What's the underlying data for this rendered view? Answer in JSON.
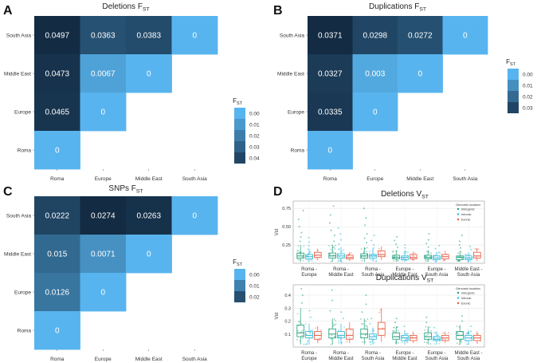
{
  "chart_data": [
    {
      "panel": "A",
      "type": "heatmap",
      "title": "Deletions F",
      "title_sub": "ST",
      "rows_top_to_bottom": [
        "South Asia",
        "Middle East",
        "Europe",
        "Roma"
      ],
      "columns": [
        "Roma",
        "Europe",
        "Middle East",
        "South Asia"
      ],
      "cells": [
        [
          {
            "v": 0.0497,
            "t": "0.0497"
          },
          {
            "v": 0.0363,
            "t": "0.0363"
          },
          {
            "v": 0.0383,
            "t": "0.0383"
          },
          {
            "v": 0,
            "t": "0"
          }
        ],
        [
          {
            "v": 0.0473,
            "t": "0.0473"
          },
          {
            "v": 0.0067,
            "t": "0.0067"
          },
          {
            "v": 0,
            "t": "0"
          }
        ],
        [
          {
            "v": 0.0465,
            "t": "0.0465"
          },
          {
            "v": 0,
            "t": "0"
          }
        ],
        [
          {
            "v": 0,
            "t": "0"
          }
        ]
      ],
      "legend_title": "F",
      "legend_sub": "ST",
      "legend_values": [
        0,
        0.01,
        0.02,
        0.03,
        0.04
      ],
      "legend_labels": [
        "0.00",
        "0.01",
        "0.02",
        "0.03",
        "0.04"
      ],
      "color_range": [
        0,
        0.05
      ]
    },
    {
      "panel": "B",
      "type": "heatmap",
      "title": "Duplications F",
      "title_sub": "ST",
      "rows_top_to_bottom": [
        "South Asia",
        "Middle East",
        "Europe",
        "Roma"
      ],
      "columns": [
        "Roma",
        "Europe",
        "Middle East",
        "South Asia"
      ],
      "cells": [
        [
          {
            "v": 0.0371,
            "t": "0.0371"
          },
          {
            "v": 0.0298,
            "t": "0.0298"
          },
          {
            "v": 0.0272,
            "t": "0.0272"
          },
          {
            "v": 0,
            "t": "0"
          }
        ],
        [
          {
            "v": 0.0327,
            "t": "0.0327"
          },
          {
            "v": 0.003,
            "t": "0.003"
          },
          {
            "v": 0,
            "t": "0"
          }
        ],
        [
          {
            "v": 0.0335,
            "t": "0.0335"
          },
          {
            "v": 0,
            "t": "0"
          }
        ],
        [
          {
            "v": 0,
            "t": "0"
          }
        ]
      ],
      "legend_title": "F",
      "legend_sub": "ST",
      "legend_values": [
        0,
        0.01,
        0.02,
        0.03
      ],
      "legend_labels": [
        "0.00",
        "0.01",
        "0.02",
        "0.03"
      ],
      "color_range": [
        0,
        0.0371
      ]
    },
    {
      "panel": "C",
      "type": "heatmap",
      "title": "SNPs F",
      "title_sub": "ST",
      "rows_top_to_bottom": [
        "South Asia",
        "Middle East",
        "Europe",
        "Roma"
      ],
      "columns": [
        "Roma",
        "Europe",
        "Middle East",
        "South Asia"
      ],
      "cells": [
        [
          {
            "v": 0.0222,
            "t": "0.0222"
          },
          {
            "v": 0.0274,
            "t": "0.0274"
          },
          {
            "v": 0.0263,
            "t": "0.0263"
          },
          {
            "v": 0,
            "t": "0"
          }
        ],
        [
          {
            "v": 0.015,
            "t": "0.015"
          },
          {
            "v": 0.0071,
            "t": "0.0071"
          },
          {
            "v": 0,
            "t": "0"
          }
        ],
        [
          {
            "v": 0.0126,
            "t": "0.0126"
          },
          {
            "v": 0,
            "t": "0"
          }
        ],
        [
          {
            "v": 0,
            "t": "0"
          }
        ]
      ],
      "legend_title": "F",
      "legend_sub": "ST",
      "legend_values": [
        0,
        0.01,
        0.02
      ],
      "legend_labels": [
        "0.00",
        "0.01",
        "0.02"
      ],
      "color_range": [
        0,
        0.0274
      ]
    },
    {
      "panel": "D",
      "type": "box",
      "subplots": [
        {
          "title": "Deletions V",
          "title_sub": "ST",
          "ylabel": "Vst",
          "ylim": [
            0,
            0.85
          ],
          "yticks": [
            0.25,
            0.5,
            0.75
          ],
          "ytick_labels": [
            "0.25",
            "0.50",
            "0.75"
          ],
          "categories": [
            "Roma -\nEurope",
            "Roma -\nMiddle East",
            "Roma -\nSouth Asia",
            "Europe -\nMiddle East",
            "Europe -\nSouth Asia",
            "Middle East -\nSouth Asia"
          ],
          "series": [
            {
              "name": "Intergenic",
              "color": "#1b9e77",
              "boxes": [
                {
                  "q1": 0.07,
                  "med": 0.1,
                  "q3": 0.14,
                  "lo": 0.02,
                  "hi": 0.25,
                  "outliers": [
                    0.3,
                    0.36,
                    0.42,
                    0.5,
                    0.6,
                    0.72
                  ]
                },
                {
                  "q1": 0.07,
                  "med": 0.1,
                  "q3": 0.14,
                  "lo": 0.02,
                  "hi": 0.25,
                  "outliers": [
                    0.3,
                    0.38,
                    0.45,
                    0.55,
                    0.66,
                    0.78
                  ]
                },
                {
                  "q1": 0.07,
                  "med": 0.1,
                  "q3": 0.13,
                  "lo": 0.02,
                  "hi": 0.22,
                  "outliers": [
                    0.28,
                    0.34,
                    0.4,
                    0.52,
                    0.62,
                    0.75
                  ]
                },
                {
                  "q1": 0.06,
                  "med": 0.08,
                  "q3": 0.11,
                  "lo": 0.02,
                  "hi": 0.18,
                  "outliers": [
                    0.22,
                    0.26,
                    0.31,
                    0.36
                  ]
                },
                {
                  "q1": 0.06,
                  "med": 0.08,
                  "q3": 0.11,
                  "lo": 0.02,
                  "hi": 0.18,
                  "outliers": [
                    0.22,
                    0.27,
                    0.32,
                    0.4
                  ]
                },
                {
                  "q1": 0.05,
                  "med": 0.08,
                  "q3": 0.1,
                  "lo": 0.02,
                  "hi": 0.17,
                  "outliers": [
                    0.21,
                    0.25,
                    0.3,
                    0.38
                  ]
                }
              ]
            },
            {
              "name": "Intronic",
              "color": "#2bb5d6",
              "boxes": [
                {
                  "q1": 0.06,
                  "med": 0.09,
                  "q3": 0.12,
                  "lo": 0.02,
                  "hi": 0.2,
                  "outliers": [
                    0.24,
                    0.29,
                    0.35
                  ]
                },
                {
                  "q1": 0.07,
                  "med": 0.1,
                  "q3": 0.13,
                  "lo": 0.02,
                  "hi": 0.22,
                  "outliers": [
                    0.26,
                    0.32,
                    0.4,
                    0.48
                  ]
                },
                {
                  "q1": 0.07,
                  "med": 0.1,
                  "q3": 0.12,
                  "lo": 0.02,
                  "hi": 0.21,
                  "outliers": [
                    0.25,
                    0.31,
                    0.38
                  ]
                },
                {
                  "q1": 0.05,
                  "med": 0.08,
                  "q3": 0.1,
                  "lo": 0.02,
                  "hi": 0.17,
                  "outliers": [
                    0.21,
                    0.25
                  ]
                },
                {
                  "q1": 0.05,
                  "med": 0.07,
                  "q3": 0.1,
                  "lo": 0.02,
                  "hi": 0.16,
                  "outliers": [
                    0.2,
                    0.24
                  ]
                },
                {
                  "q1": 0.05,
                  "med": 0.07,
                  "q3": 0.1,
                  "lo": 0.02,
                  "hi": 0.15,
                  "outliers": [
                    0.19,
                    0.23
                  ]
                }
              ]
            },
            {
              "name": "Exonic",
              "color": "#e6553a",
              "boxes": [
                {
                  "q1": 0.08,
                  "med": 0.11,
                  "q3": 0.15,
                  "lo": 0.04,
                  "hi": 0.2,
                  "outliers": []
                },
                {
                  "q1": 0.06,
                  "med": 0.08,
                  "q3": 0.11,
                  "lo": 0.03,
                  "hi": 0.15,
                  "outliers": []
                },
                {
                  "q1": 0.09,
                  "med": 0.12,
                  "q3": 0.17,
                  "lo": 0.04,
                  "hi": 0.23,
                  "outliers": []
                },
                {
                  "q1": 0.06,
                  "med": 0.08,
                  "q3": 0.12,
                  "lo": 0.03,
                  "hi": 0.16,
                  "outliers": []
                },
                {
                  "q1": 0.06,
                  "med": 0.09,
                  "q3": 0.12,
                  "lo": 0.03,
                  "hi": 0.17,
                  "outliers": []
                },
                {
                  "q1": 0.07,
                  "med": 0.1,
                  "q3": 0.15,
                  "lo": 0.03,
                  "hi": 0.21,
                  "outliers": []
                }
              ]
            }
          ]
        },
        {
          "title": "Duplications V",
          "title_sub": "ST",
          "ylabel": "Vst",
          "ylim": [
            0,
            0.48
          ],
          "yticks": [
            0.1,
            0.2,
            0.3,
            0.4
          ],
          "ytick_labels": [
            "0.1",
            "0.2",
            "0.3",
            "0.4"
          ],
          "categories": [
            "Roma -\nEurope",
            "Roma -\nMiddle East",
            "Roma -\nSouth Asia",
            "Europe -\nMiddle East",
            "Europe -\nSouth Asia",
            "Middle East -\nSouth Asia"
          ],
          "series": [
            {
              "name": "Intergenic",
              "color": "#1b9e77",
              "boxes": [
                {
                  "q1": 0.08,
                  "med": 0.11,
                  "q3": 0.17,
                  "lo": 0.02,
                  "hi": 0.3,
                  "outliers": [
                    0.34,
                    0.4,
                    0.45
                  ]
                },
                {
                  "q1": 0.07,
                  "med": 0.1,
                  "q3": 0.14,
                  "lo": 0.02,
                  "hi": 0.22,
                  "outliers": [
                    0.28,
                    0.36,
                    0.44
                  ]
                },
                {
                  "q1": 0.07,
                  "med": 0.1,
                  "q3": 0.14,
                  "lo": 0.02,
                  "hi": 0.22,
                  "outliers": [
                    0.27,
                    0.33,
                    0.4
                  ]
                },
                {
                  "q1": 0.06,
                  "med": 0.08,
                  "q3": 0.11,
                  "lo": 0.02,
                  "hi": 0.16,
                  "outliers": [
                    0.19,
                    0.22
                  ]
                },
                {
                  "q1": 0.06,
                  "med": 0.08,
                  "q3": 0.11,
                  "lo": 0.02,
                  "hi": 0.16,
                  "outliers": [
                    0.19,
                    0.23
                  ]
                },
                {
                  "q1": 0.06,
                  "med": 0.09,
                  "q3": 0.12,
                  "lo": 0.02,
                  "hi": 0.17,
                  "outliers": [
                    0.2,
                    0.24
                  ]
                }
              ]
            },
            {
              "name": "Intronic",
              "color": "#2bb5d6",
              "boxes": [
                {
                  "q1": 0.07,
                  "med": 0.09,
                  "q3": 0.12,
                  "lo": 0.02,
                  "hi": 0.18,
                  "outliers": [
                    0.23,
                    0.28
                  ]
                },
                {
                  "q1": 0.07,
                  "med": 0.09,
                  "q3": 0.12,
                  "lo": 0.02,
                  "hi": 0.18,
                  "outliers": [
                    0.22,
                    0.27
                  ]
                },
                {
                  "q1": 0.06,
                  "med": 0.08,
                  "q3": 0.1,
                  "lo": 0.02,
                  "hi": 0.15,
                  "outliers": [
                    0.18,
                    0.22
                  ]
                },
                {
                  "q1": 0.05,
                  "med": 0.07,
                  "q3": 0.09,
                  "lo": 0.02,
                  "hi": 0.13,
                  "outliers": [
                    0.16
                  ]
                },
                {
                  "q1": 0.05,
                  "med": 0.06,
                  "q3": 0.08,
                  "lo": 0.02,
                  "hi": 0.12,
                  "outliers": [
                    0.15
                  ]
                },
                {
                  "q1": 0.05,
                  "med": 0.07,
                  "q3": 0.09,
                  "lo": 0.02,
                  "hi": 0.13,
                  "outliers": [
                    0.16
                  ]
                }
              ]
            },
            {
              "name": "Exonic",
              "color": "#e6553a",
              "boxes": [
                {
                  "q1": 0.06,
                  "med": 0.09,
                  "q3": 0.12,
                  "lo": 0.03,
                  "hi": 0.16,
                  "outliers": []
                },
                {
                  "q1": 0.06,
                  "med": 0.09,
                  "q3": 0.14,
                  "lo": 0.03,
                  "hi": 0.19,
                  "outliers": []
                },
                {
                  "q1": 0.09,
                  "med": 0.14,
                  "q3": 0.19,
                  "lo": 0.04,
                  "hi": 0.3,
                  "outliers": []
                },
                {
                  "q1": 0.05,
                  "med": 0.07,
                  "q3": 0.09,
                  "lo": 0.03,
                  "hi": 0.12,
                  "outliers": []
                },
                {
                  "q1": 0.05,
                  "med": 0.07,
                  "q3": 0.09,
                  "lo": 0.03,
                  "hi": 0.12,
                  "outliers": []
                },
                {
                  "q1": 0.05,
                  "med": 0.07,
                  "q3": 0.09,
                  "lo": 0.03,
                  "hi": 0.12,
                  "outliers": []
                }
              ]
            }
          ]
        }
      ],
      "legend_title": "Genomic location",
      "legend_items": [
        "Intergenic",
        "Intronic",
        "Exonic"
      ]
    }
  ],
  "colors": {
    "low": "#58b4ee",
    "high": "#132b43",
    "intergenic": "#1b9e77",
    "intronic": "#2bb5d6",
    "exonic": "#e6553a"
  }
}
